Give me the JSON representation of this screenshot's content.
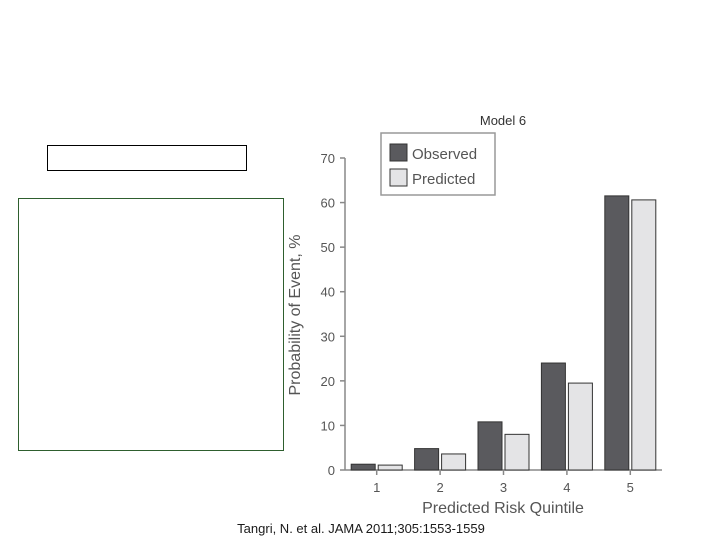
{
  "slide": {
    "title_box_text": "",
    "content_box_text": "",
    "citation": "Tangri, N. et al. JAMA 2011;305:1553-1559"
  },
  "colors": {
    "observed": "#5a5a5e",
    "predicted": "#e4e4e6",
    "axis": "#888888",
    "text": "#555555",
    "content_box_border": "#2e5e2e"
  },
  "chart_data": {
    "type": "bar",
    "title": "Model 6",
    "xlabel": "Predicted Risk Quintile",
    "ylabel": "Probability of Event, %",
    "categories": [
      "1",
      "2",
      "3",
      "4",
      "5"
    ],
    "series": [
      {
        "name": "Observed",
        "values": [
          1.3,
          4.8,
          10.8,
          24.0,
          61.5
        ]
      },
      {
        "name": "Predicted",
        "values": [
          1.1,
          3.6,
          8.0,
          19.5,
          60.6
        ]
      }
    ],
    "ylim": [
      0,
      70
    ],
    "yticks": [
      0,
      10,
      20,
      30,
      40,
      50,
      60,
      70
    ],
    "legend_position": "top-left",
    "grid": false
  }
}
